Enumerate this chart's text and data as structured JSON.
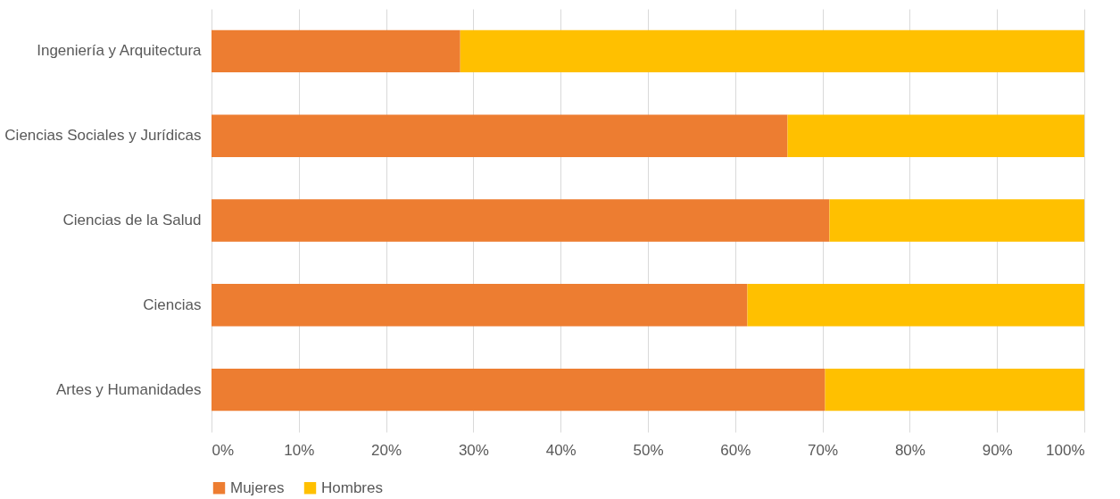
{
  "chart_data": {
    "type": "bar",
    "orientation": "horizontal",
    "stacked": true,
    "categories": [
      "Ingeniería y Arquitectura",
      "Ciencias Sociales y Jurídicas",
      "Ciencias de la Salud",
      "Ciencias",
      "Artes y Humanidades"
    ],
    "series": [
      {
        "name": "Mujeres",
        "color": "#ed7d31",
        "values": [
          28.5,
          66.0,
          70.8,
          61.4,
          70.3
        ]
      },
      {
        "name": "Hombres",
        "color": "#ffc000",
        "values": [
          71.5,
          34.0,
          29.2,
          38.6,
          29.7
        ]
      }
    ],
    "xlim": [
      0,
      100
    ],
    "xticks": [
      {
        "value": 0,
        "label": "0%"
      },
      {
        "value": 10,
        "label": "10%"
      },
      {
        "value": 20,
        "label": "20%"
      },
      {
        "value": 30,
        "label": "30%"
      },
      {
        "value": 40,
        "label": "40%"
      },
      {
        "value": 50,
        "label": "50%"
      },
      {
        "value": 60,
        "label": "60%"
      },
      {
        "value": 70,
        "label": "70%"
      },
      {
        "value": 80,
        "label": "80%"
      },
      {
        "value": 90,
        "label": "90%"
      },
      {
        "value": 100,
        "label": "100%"
      }
    ],
    "grid": "x",
    "legend": "bottom"
  }
}
